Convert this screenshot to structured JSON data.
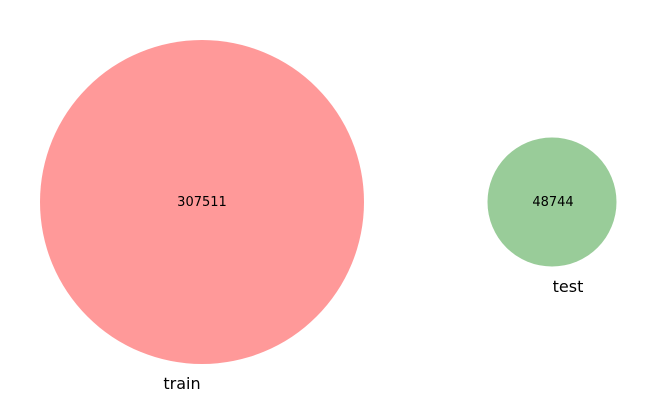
{
  "chart_data": {
    "type": "venn",
    "sets": [
      {
        "name": "train",
        "size": 307511,
        "color": "#ff9999"
      },
      {
        "name": "test",
        "size": 48744,
        "color": "#99cc99"
      }
    ],
    "intersection": 0
  }
}
